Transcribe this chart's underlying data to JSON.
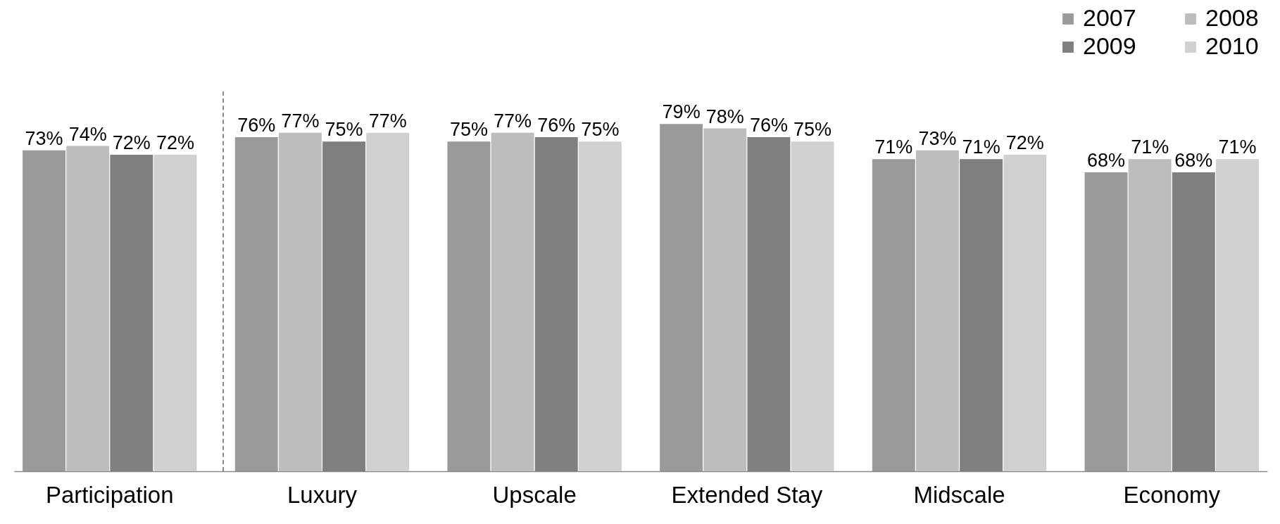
{
  "chart_data": {
    "type": "bar",
    "categories": [
      "Participation",
      "Luxury",
      "Upscale",
      "Extended Stay",
      "Midscale",
      "Economy"
    ],
    "series": [
      {
        "name": "2007",
        "color": "#9a9a9a",
        "values": [
          73,
          76,
          75,
          79,
          71,
          68
        ],
        "value_labels": [
          "73%",
          "76%",
          "75%",
          "79%",
          "71%",
          "68%"
        ]
      },
      {
        "name": "2008",
        "color": "#bdbdbd",
        "values": [
          74,
          77,
          77,
          78,
          73,
          71
        ],
        "value_labels": [
          "74%",
          "77%",
          "77%",
          "78%",
          "73%",
          "71%"
        ]
      },
      {
        "name": "2009",
        "color": "#7f7f7f",
        "values": [
          72,
          75,
          76,
          76,
          71,
          68
        ],
        "value_labels": [
          "72%",
          "75%",
          "76%",
          "76%",
          "71%",
          "68%"
        ]
      },
      {
        "name": "2010",
        "color": "#d0d0d0",
        "values": [
          72,
          77,
          75,
          75,
          72,
          71
        ],
        "value_labels": [
          "72%",
          "77%",
          "75%",
          "75%",
          "72%",
          "71%"
        ]
      }
    ],
    "legend": "top right",
    "tick_labels": "x"
  }
}
